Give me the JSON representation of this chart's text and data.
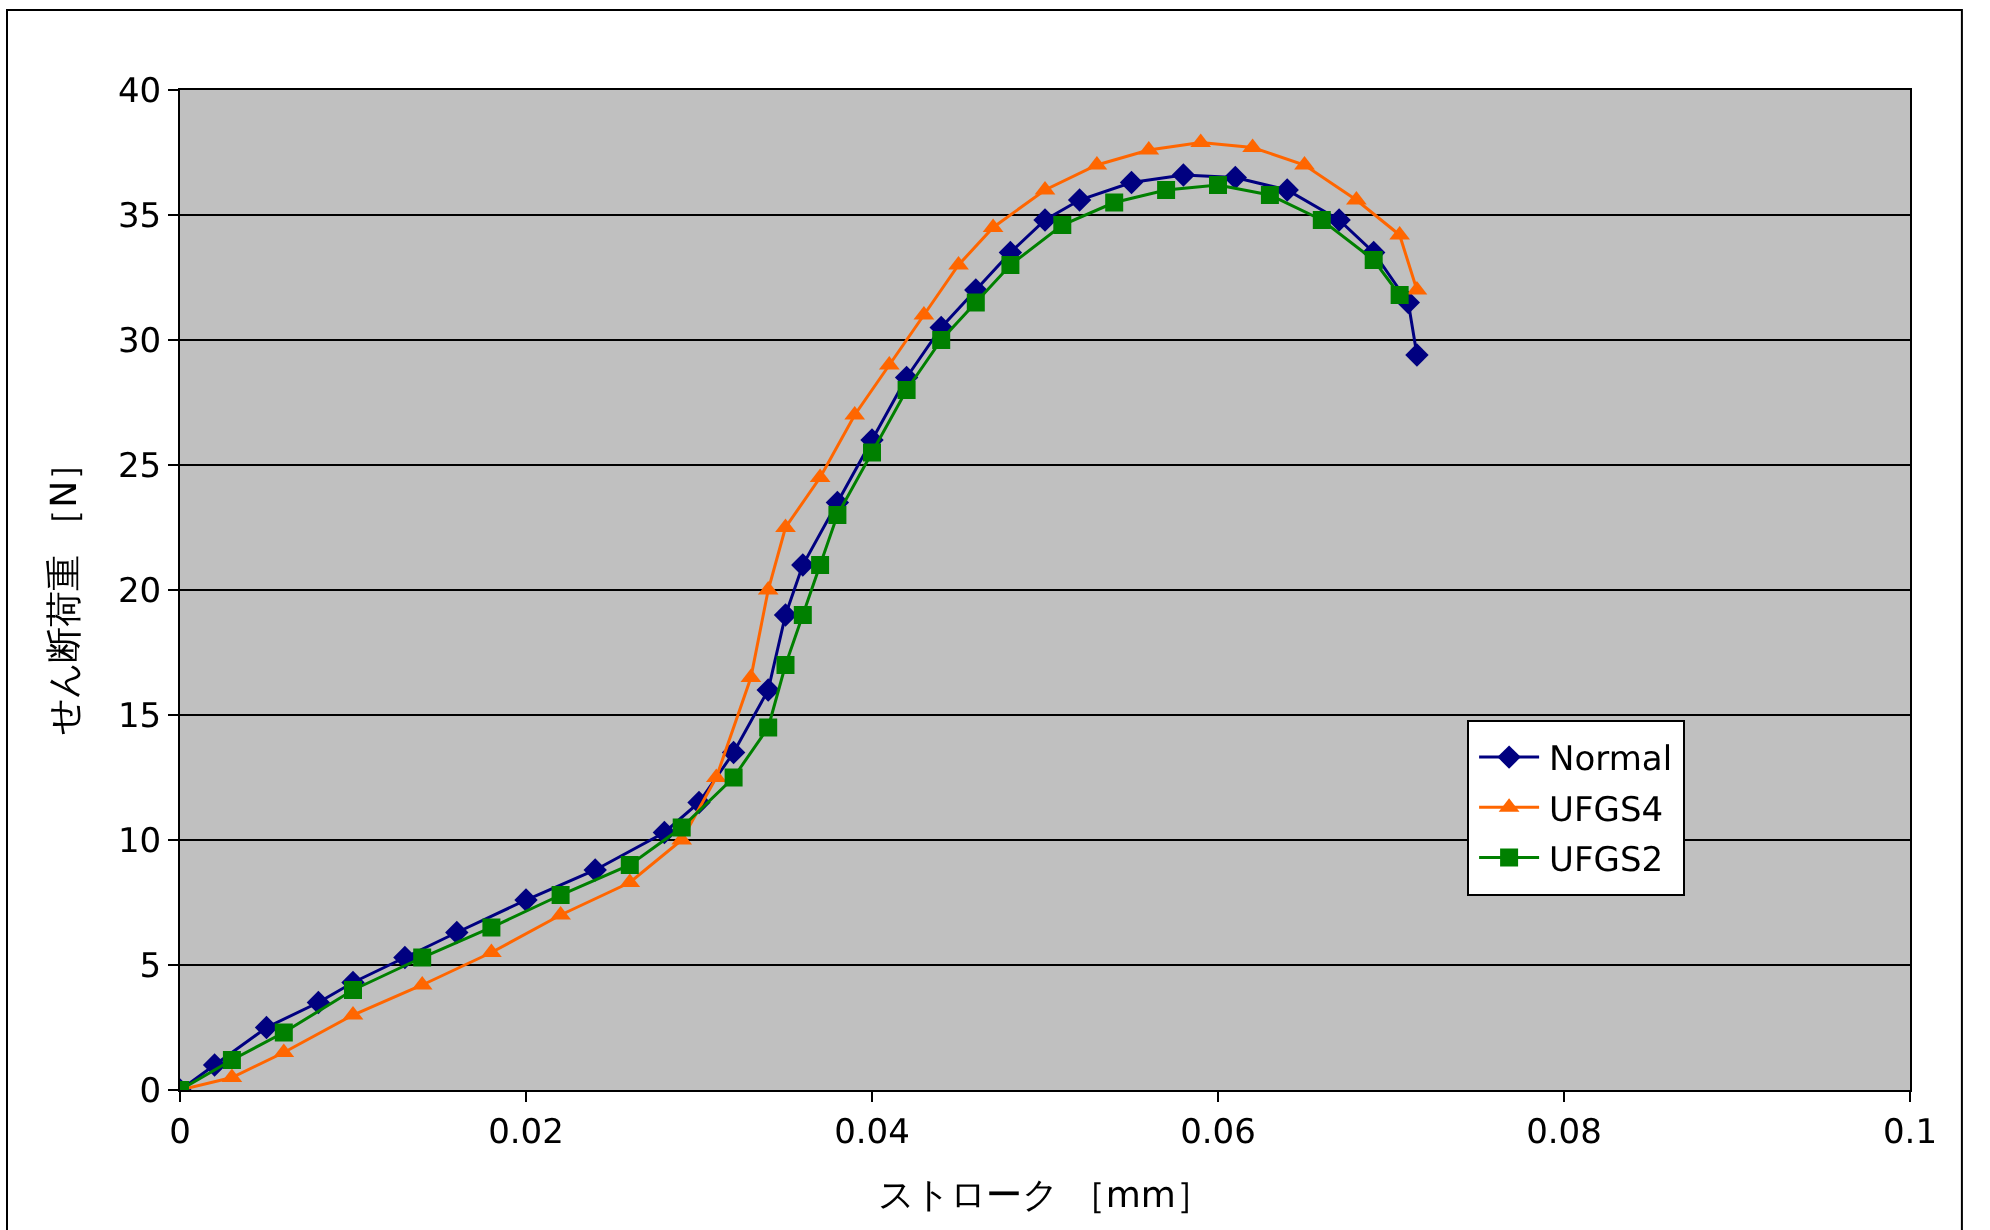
{
  "chart_data": {
    "type": "line",
    "xlabel": "ストローク ［mm］",
    "ylabel": "せん断荷重 ［N］",
    "xlim": [
      0,
      0.1
    ],
    "xticks": [
      0,
      0.02,
      0.04,
      0.06,
      0.08,
      0.1
    ],
    "ylim": [
      0,
      40
    ],
    "yticks": [
      0,
      5,
      10,
      15,
      20,
      25,
      30,
      35,
      40
    ],
    "grid": "y",
    "legend": "right",
    "series": [
      {
        "name": "Normal",
        "color": "#000080",
        "marker": "diamond",
        "x": [
          0,
          0.002,
          0.005,
          0.008,
          0.01,
          0.013,
          0.016,
          0.02,
          0.024,
          0.028,
          0.03,
          0.032,
          0.034,
          0.035,
          0.036,
          0.038,
          0.04,
          0.042,
          0.044,
          0.046,
          0.048,
          0.05,
          0.052,
          0.055,
          0.058,
          0.061,
          0.064,
          0.067,
          0.069,
          0.071,
          0.0715
        ],
        "values": [
          0,
          1,
          2.5,
          3.5,
          4.3,
          5.3,
          6.3,
          7.6,
          8.8,
          10.3,
          11.5,
          13.5,
          16,
          19,
          21,
          23.5,
          26,
          28.5,
          30.5,
          32,
          33.5,
          34.8,
          35.6,
          36.3,
          36.6,
          36.5,
          36,
          34.8,
          33.5,
          31.5,
          29.4
        ]
      },
      {
        "name": "UFGS4",
        "color": "#ff6600",
        "marker": "triangle",
        "x": [
          0,
          0.003,
          0.006,
          0.01,
          0.014,
          0.018,
          0.022,
          0.026,
          0.029,
          0.031,
          0.033,
          0.034,
          0.035,
          0.037,
          0.039,
          0.041,
          0.043,
          0.045,
          0.047,
          0.05,
          0.053,
          0.056,
          0.059,
          0.062,
          0.065,
          0.068,
          0.0705,
          0.0715
        ],
        "values": [
          0,
          0.5,
          1.5,
          3,
          4.2,
          5.5,
          7,
          8.3,
          10,
          12.5,
          16.5,
          20,
          22.5,
          24.5,
          27,
          29,
          31,
          33,
          34.5,
          36,
          37,
          37.6,
          37.9,
          37.7,
          37,
          35.6,
          34.2,
          32
        ]
      },
      {
        "name": "UFGS2",
        "color": "#008000",
        "marker": "square",
        "x": [
          0,
          0.003,
          0.006,
          0.01,
          0.014,
          0.018,
          0.022,
          0.026,
          0.029,
          0.032,
          0.034,
          0.035,
          0.036,
          0.037,
          0.038,
          0.04,
          0.042,
          0.044,
          0.046,
          0.048,
          0.051,
          0.054,
          0.057,
          0.06,
          0.063,
          0.066,
          0.069,
          0.0705
        ],
        "values": [
          0,
          1.2,
          2.3,
          4,
          5.3,
          6.5,
          7.8,
          9,
          10.5,
          12.5,
          14.5,
          17,
          19,
          21,
          23,
          25.5,
          28,
          30,
          31.5,
          33,
          34.6,
          35.5,
          36,
          36.2,
          35.8,
          34.8,
          33.2,
          31.8
        ]
      }
    ]
  }
}
